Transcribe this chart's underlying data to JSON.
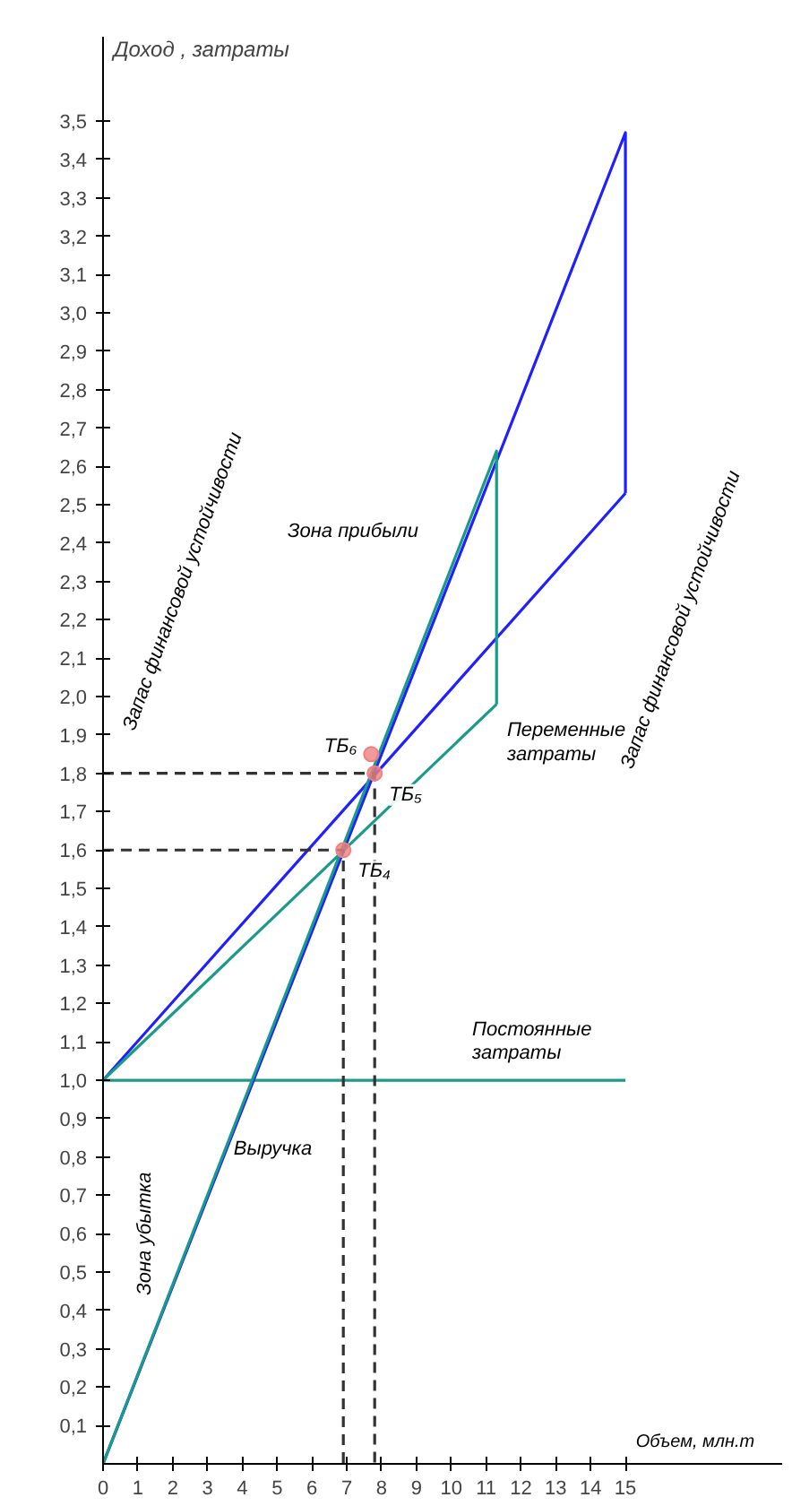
{
  "chart_data": {
    "type": "line",
    "xlabel": "Объем, млн.т",
    "ylabel": "Доход , затраты",
    "xlim": [
      0,
      19.5
    ],
    "ylim": [
      0,
      3.72
    ],
    "xticks": [
      0,
      1,
      2,
      3,
      4,
      5,
      6,
      7,
      8,
      9,
      10,
      11,
      12,
      13,
      14,
      15
    ],
    "yticks": [
      {
        "value": 0.1,
        "label": "0,1"
      },
      {
        "value": 0.2,
        "label": "0,2"
      },
      {
        "value": 0.3,
        "label": "0,3"
      },
      {
        "value": 0.4,
        "label": "0,4"
      },
      {
        "value": 0.5,
        "label": "0,5"
      },
      {
        "value": 0.6,
        "label": "0,6"
      },
      {
        "value": 0.7,
        "label": "0,7"
      },
      {
        "value": 0.8,
        "label": "0,8"
      },
      {
        "value": 0.9,
        "label": "0,9"
      },
      {
        "value": 1.0,
        "label": "1,0"
      },
      {
        "value": 1.1,
        "label": "1,1"
      },
      {
        "value": 1.2,
        "label": "1,2"
      },
      {
        "value": 1.3,
        "label": "1,3"
      },
      {
        "value": 1.4,
        "label": "1,4"
      },
      {
        "value": 1.5,
        "label": "1,5"
      },
      {
        "value": 1.6,
        "label": "1,6"
      },
      {
        "value": 1.7,
        "label": "1,7"
      },
      {
        "value": 1.8,
        "label": "1,8"
      },
      {
        "value": 1.9,
        "label": "1,9"
      },
      {
        "value": 2.0,
        "label": "2,0"
      },
      {
        "value": 2.1,
        "label": "2,1"
      },
      {
        "value": 2.2,
        "label": "2,2"
      },
      {
        "value": 2.3,
        "label": "2,3"
      },
      {
        "value": 2.4,
        "label": "2,4"
      },
      {
        "value": 2.5,
        "label": "2,5"
      },
      {
        "value": 2.6,
        "label": "2,6"
      },
      {
        "value": 2.7,
        "label": "2,7"
      },
      {
        "value": 2.8,
        "label": "2,8"
      },
      {
        "value": 2.9,
        "label": "2,9"
      },
      {
        "value": 3.0,
        "label": "3,0"
      },
      {
        "value": 3.1,
        "label": "3,1"
      },
      {
        "value": 3.2,
        "label": "3,2"
      },
      {
        "value": 3.3,
        "label": "3,3"
      },
      {
        "value": 3.4,
        "label": "3,4"
      },
      {
        "value": 3.5,
        "label": "3,5"
      }
    ],
    "grid": false,
    "marker": "none",
    "line_style": "solid",
    "series": [
      {
        "color": "#1a9a8a",
        "x": [
          0,
          15
        ],
        "values": [
          1.0,
          1.0
        ]
      },
      {
        "color": "#1f1fff",
        "x": [
          0,
          15,
          15
        ],
        "values": [
          0,
          3.47,
          2.53
        ]
      },
      {
        "color": "#1f1fff",
        "x": [
          0,
          15
        ],
        "values": [
          1.0,
          2.53
        ]
      },
      {
        "color": "#1a9a8a",
        "x": [
          0,
          11.3,
          11.3
        ],
        "values": [
          0,
          2.64,
          1.98
        ]
      },
      {
        "color": "#1a9a8a",
        "x": [
          0,
          11.3
        ],
        "values": [
          1.0,
          1.98
        ]
      },
      {
        "color": "#333333",
        "line_style": "dashed",
        "x": [
          0,
          7.8,
          7.8
        ],
        "values": [
          1.8,
          1.8,
          0
        ]
      },
      {
        "color": "#333333",
        "line_style": "dashed",
        "x": [
          0,
          6.9,
          6.9
        ],
        "values": [
          1.6,
          1.6,
          0
        ]
      },
      {
        "type": "scatter",
        "marker": "circle",
        "name": "ТБ₄",
        "color": "#f08080",
        "x": [
          6.9
        ],
        "values": [
          1.6
        ]
      },
      {
        "type": "scatter",
        "marker": "circle",
        "name": "ТБ₅",
        "color": "#f08080",
        "x": [
          7.8
        ],
        "values": [
          1.8
        ]
      },
      {
        "type": "scatter",
        "marker": "circle",
        "name": "ТБ₆",
        "color": "#f08080",
        "x": [
          7.7
        ],
        "values": [
          1.85
        ]
      }
    ],
    "annotations": [
      "Зона прибыли",
      "Переменные\nзатраты",
      "Постоянные\nзатраты",
      "Выручка",
      "Зона убытка",
      "Запас финансовой устойчивости",
      "Запас финансовой устойчивости"
    ]
  }
}
